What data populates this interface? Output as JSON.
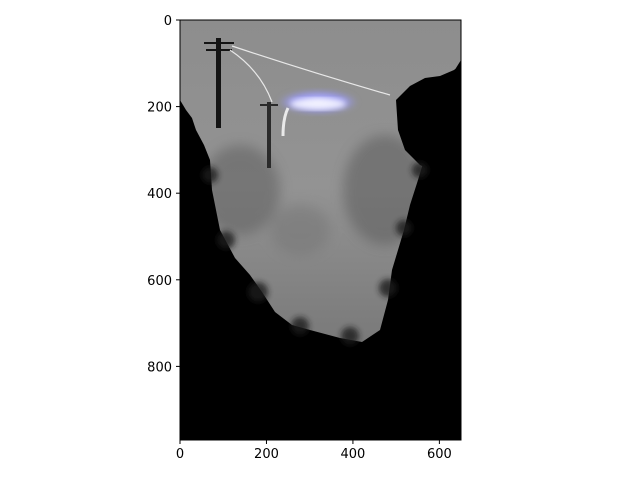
{
  "figure": {
    "background": "#ffffff"
  },
  "chart_data": {
    "type": "image",
    "title": "",
    "xlabel": "",
    "ylabel": "",
    "xlim": [
      0,
      650
    ],
    "ylim": [
      970,
      0
    ],
    "x_ticks": [
      0,
      200,
      400,
      600
    ],
    "y_ticks": [
      0,
      200,
      400,
      600,
      800
    ],
    "x_tick_labels": [
      "0",
      "200",
      "400",
      "600"
    ],
    "y_tick_labels": [
      "0",
      "200",
      "400",
      "600",
      "800"
    ],
    "image_content": "foggy country road scene with utility poles and power lines, dark trees framing both sides, bright bluish highlight in upper sky",
    "colors": {
      "fog": "#8f8f8f",
      "dark_foliage": "#000000",
      "highlight": "#9a9af8"
    }
  }
}
